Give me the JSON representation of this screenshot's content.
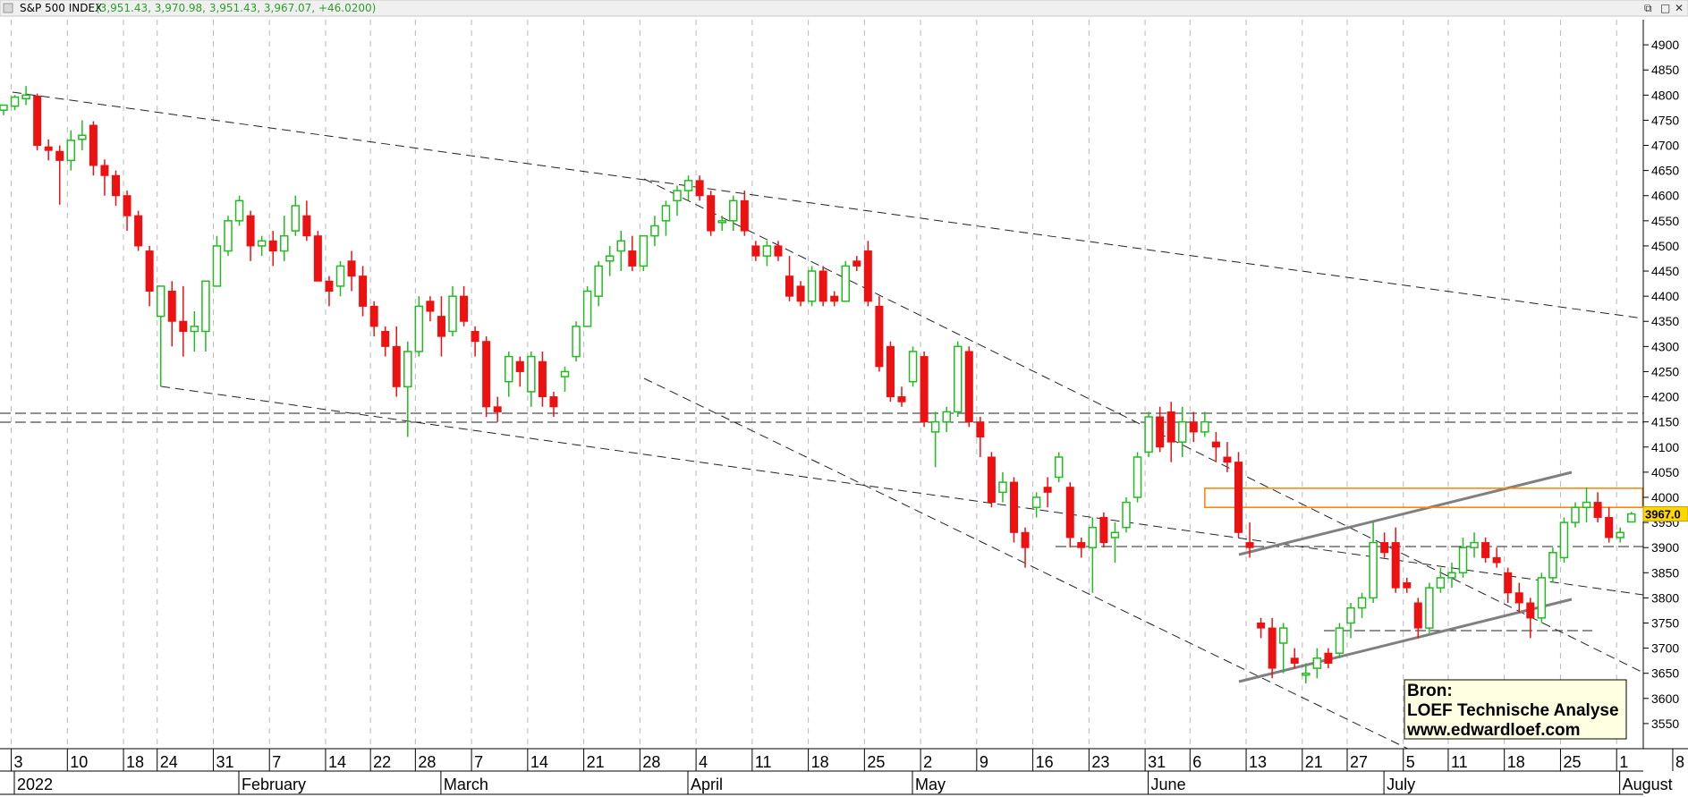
{
  "header": {
    "title": "S&P 500 INDEX",
    "ohlc": "(3,951.43, 3,970.98, 3,951.43, 3,967.07, +46.0200)"
  },
  "colors": {
    "up": "#22bb22",
    "down": "#ee1111",
    "zone": "#ff7f00",
    "last_label_bg": "#ffd700",
    "anno_bg": "#ffffe1"
  },
  "annotation": {
    "line1": "Bron:",
    "line2": "LOEF Technische Analyse",
    "line3": "www.edwardloef.com"
  },
  "chart_data": {
    "type": "candlestick",
    "title": "S&P 500 INDEX",
    "ylim": [
      3500,
      4950
    ],
    "yticks": [
      3550,
      3600,
      3650,
      3700,
      3750,
      3800,
      3850,
      3900,
      3950,
      4000,
      4050,
      4100,
      4150,
      4200,
      4250,
      4300,
      4350,
      4400,
      4450,
      4500,
      4550,
      4600,
      4650,
      4700,
      4750,
      4800,
      4850,
      4900
    ],
    "last_value_label": "3967.0",
    "x_day_labels": [
      {
        "i": 1,
        "t": "3"
      },
      {
        "i": 6,
        "t": "10"
      },
      {
        "i": 11,
        "t": "18"
      },
      {
        "i": 14,
        "t": "24"
      },
      {
        "i": 19,
        "t": "31"
      },
      {
        "i": 24,
        "t": "7"
      },
      {
        "i": 29,
        "t": "14"
      },
      {
        "i": 33,
        "t": "22"
      },
      {
        "i": 37,
        "t": "28"
      },
      {
        "i": 42,
        "t": "7"
      },
      {
        "i": 47,
        "t": "14"
      },
      {
        "i": 52,
        "t": "21"
      },
      {
        "i": 57,
        "t": "28"
      },
      {
        "i": 62,
        "t": "4"
      },
      {
        "i": 67,
        "t": "11"
      },
      {
        "i": 72,
        "t": "18"
      },
      {
        "i": 77,
        "t": "25"
      },
      {
        "i": 82,
        "t": "2"
      },
      {
        "i": 87,
        "t": "9"
      },
      {
        "i": 92,
        "t": "16"
      },
      {
        "i": 97,
        "t": "23"
      },
      {
        "i": 102,
        "t": "31"
      },
      {
        "i": 106,
        "t": "6"
      },
      {
        "i": 111,
        "t": "13"
      },
      {
        "i": 116,
        "t": "21"
      },
      {
        "i": 120,
        "t": "27"
      },
      {
        "i": 125,
        "t": "5"
      },
      {
        "i": 129,
        "t": "11"
      },
      {
        "i": 134,
        "t": "18"
      },
      {
        "i": 139,
        "t": "25"
      },
      {
        "i": 144,
        "t": "1"
      },
      {
        "i": 149,
        "t": "8"
      }
    ],
    "x_month_labels": [
      {
        "i": 0,
        "t": "2022"
      },
      {
        "i": 20,
        "t": "February"
      },
      {
        "i": 38,
        "t": "March"
      },
      {
        "i": 60,
        "t": "April"
      },
      {
        "i": 80,
        "t": "May"
      },
      {
        "i": 101,
        "t": "June"
      },
      {
        "i": 122,
        "t": "July"
      },
      {
        "i": 143,
        "t": "August"
      }
    ],
    "resistance_zone": {
      "i_start": 107,
      "i_end": 146,
      "y_low": 3980,
      "y_high": 4018
    },
    "candles": [
      [
        4770,
        4780,
        4760,
        4780
      ],
      [
        4778,
        4800,
        4770,
        4796
      ],
      [
        4793,
        4818,
        4780,
        4800
      ],
      [
        4798,
        4803,
        4690,
        4700
      ],
      [
        4697,
        4712,
        4670,
        4690
      ],
      [
        4688,
        4700,
        4582,
        4670
      ],
      [
        4670,
        4730,
        4650,
        4710
      ],
      [
        4712,
        4750,
        4690,
        4720
      ],
      [
        4740,
        4748,
        4640,
        4660
      ],
      [
        4660,
        4672,
        4600,
        4640
      ],
      [
        4640,
        4650,
        4580,
        4600
      ],
      [
        4600,
        4610,
        4530,
        4560
      ],
      [
        4560,
        4570,
        4490,
        4500
      ],
      [
        4490,
        4500,
        4380,
        4410
      ],
      [
        4360,
        4420,
        4220,
        4420
      ],
      [
        4410,
        4430,
        4300,
        4350
      ],
      [
        4350,
        4420,
        4280,
        4330
      ],
      [
        4330,
        4370,
        4290,
        4340
      ],
      [
        4330,
        4430,
        4290,
        4430
      ],
      [
        4420,
        4520,
        4420,
        4500
      ],
      [
        4490,
        4560,
        4480,
        4550
      ],
      [
        4550,
        4600,
        4540,
        4590
      ],
      [
        4560,
        4570,
        4470,
        4500
      ],
      [
        4500,
        4520,
        4480,
        4510
      ],
      [
        4510,
        4530,
        4460,
        4490
      ],
      [
        4490,
        4560,
        4470,
        4520
      ],
      [
        4530,
        4600,
        4520,
        4580
      ],
      [
        4560,
        4590,
        4510,
        4520
      ],
      [
        4520,
        4530,
        4430,
        4430
      ],
      [
        4430,
        4440,
        4380,
        4410
      ],
      [
        4420,
        4470,
        4400,
        4460
      ],
      [
        4470,
        4490,
        4410,
        4440
      ],
      [
        4440,
        4460,
        4360,
        4380
      ],
      [
        4380,
        4390,
        4320,
        4340
      ],
      [
        4330,
        4340,
        4280,
        4300
      ],
      [
        4300,
        4340,
        4200,
        4220
      ],
      [
        4220,
        4310,
        4120,
        4290
      ],
      [
        4290,
        4400,
        4280,
        4380
      ],
      [
        4390,
        4400,
        4350,
        4370
      ],
      [
        4360,
        4400,
        4280,
        4320
      ],
      [
        4330,
        4420,
        4320,
        4400
      ],
      [
        4400,
        4420,
        4340,
        4350
      ],
      [
        4330,
        4340,
        4280,
        4310
      ],
      [
        4310,
        4320,
        4160,
        4180
      ],
      [
        4180,
        4200,
        4150,
        4170
      ],
      [
        4230,
        4290,
        4200,
        4280
      ],
      [
        4270,
        4280,
        4220,
        4250
      ],
      [
        4210,
        4290,
        4180,
        4280
      ],
      [
        4270,
        4290,
        4180,
        4200
      ],
      [
        4200,
        4210,
        4160,
        4180
      ],
      [
        4240,
        4260,
        4210,
        4250
      ],
      [
        4280,
        4350,
        4270,
        4340
      ],
      [
        4340,
        4420,
        4340,
        4410
      ],
      [
        4400,
        4470,
        4380,
        4460
      ],
      [
        4470,
        4500,
        4440,
        4480
      ],
      [
        4490,
        4530,
        4450,
        4510
      ],
      [
        4490,
        4520,
        4450,
        4460
      ],
      [
        4460,
        4520,
        4450,
        4520
      ],
      [
        4520,
        4560,
        4500,
        4540
      ],
      [
        4550,
        4590,
        4520,
        4580
      ],
      [
        4590,
        4620,
        4560,
        4610
      ],
      [
        4610,
        4640,
        4590,
        4630
      ],
      [
        4630,
        4640,
        4590,
        4600
      ],
      [
        4600,
        4610,
        4520,
        4530
      ],
      [
        4550,
        4560,
        4530,
        4550
      ],
      [
        4550,
        4600,
        4530,
        4590
      ],
      [
        4590,
        4610,
        4520,
        4530
      ],
      [
        4500,
        4510,
        4470,
        4480
      ],
      [
        4480,
        4510,
        4460,
        4500
      ],
      [
        4500,
        4510,
        4470,
        4480
      ],
      [
        4440,
        4480,
        4390,
        4400
      ],
      [
        4420,
        4430,
        4380,
        4390
      ],
      [
        4390,
        4460,
        4380,
        4450
      ],
      [
        4450,
        4460,
        4380,
        4390
      ],
      [
        4400,
        4410,
        4380,
        4390
      ],
      [
        4390,
        4470,
        4390,
        4460
      ],
      [
        4470,
        4480,
        4450,
        4460
      ],
      [
        4490,
        4510,
        4380,
        4390
      ],
      [
        4380,
        4400,
        4250,
        4260
      ],
      [
        4300,
        4310,
        4190,
        4200
      ],
      [
        4200,
        4220,
        4180,
        4190
      ],
      [
        4230,
        4300,
        4220,
        4290
      ],
      [
        4280,
        4290,
        4140,
        4150
      ],
      [
        4130,
        4170,
        4060,
        4150
      ],
      [
        4150,
        4180,
        4130,
        4170
      ],
      [
        4170,
        4310,
        4160,
        4300
      ],
      [
        4290,
        4300,
        4140,
        4150
      ],
      [
        4150,
        4160,
        4080,
        4120
      ],
      [
        4080,
        4090,
        3980,
        3990
      ],
      [
        4010,
        4050,
        3990,
        4030
      ],
      [
        4030,
        4040,
        3910,
        3930
      ],
      [
        3930,
        3940,
        3860,
        3900
      ],
      [
        3980,
        4010,
        3960,
        4000
      ],
      [
        4020,
        4040,
        3980,
        4010
      ],
      [
        4040,
        4090,
        4030,
        4080
      ],
      [
        4020,
        4030,
        3900,
        3920
      ],
      [
        3910,
        3920,
        3880,
        3900
      ],
      [
        3900,
        3960,
        3810,
        3940
      ],
      [
        3960,
        3970,
        3900,
        3910
      ],
      [
        3920,
        3950,
        3870,
        3930
      ],
      [
        3940,
        4000,
        3930,
        3990
      ],
      [
        4000,
        4090,
        3990,
        4080
      ],
      [
        4090,
        4170,
        4080,
        4160
      ],
      [
        4160,
        4180,
        4090,
        4100
      ],
      [
        4170,
        4190,
        4070,
        4110
      ],
      [
        4110,
        4180,
        4080,
        4150
      ],
      [
        4150,
        4170,
        4110,
        4130
      ],
      [
        4130,
        4170,
        4120,
        4150
      ],
      [
        4110,
        4130,
        4070,
        4100
      ],
      [
        4080,
        4110,
        4050,
        4070
      ],
      [
        4070,
        4090,
        3920,
        3930
      ],
      [
        3910,
        3950,
        3880,
        3900
      ],
      [
        3750,
        3760,
        3720,
        3740
      ],
      [
        3740,
        3760,
        3640,
        3660
      ],
      [
        3710,
        3750,
        3650,
        3740
      ],
      [
        3680,
        3700,
        3660,
        3670
      ],
      [
        3650,
        3670,
        3630,
        3650
      ],
      [
        3660,
        3700,
        3640,
        3680
      ],
      [
        3690,
        3700,
        3660,
        3670
      ],
      [
        3690,
        3750,
        3680,
        3740
      ],
      [
        3750,
        3790,
        3720,
        3780
      ],
      [
        3780,
        3810,
        3760,
        3800
      ],
      [
        3800,
        3950,
        3790,
        3910
      ],
      [
        3910,
        3930,
        3880,
        3890
      ],
      [
        3910,
        3940,
        3810,
        3820
      ],
      [
        3830,
        3840,
        3810,
        3820
      ],
      [
        3790,
        3800,
        3720,
        3740
      ],
      [
        3740,
        3830,
        3730,
        3820
      ],
      [
        3820,
        3860,
        3810,
        3840
      ],
      [
        3840,
        3870,
        3820,
        3850
      ],
      [
        3850,
        3920,
        3840,
        3900
      ],
      [
        3900,
        3930,
        3880,
        3910
      ],
      [
        3910,
        3920,
        3870,
        3880
      ],
      [
        3880,
        3900,
        3860,
        3870
      ],
      [
        3850,
        3860,
        3790,
        3810
      ],
      [
        3810,
        3830,
        3770,
        3790
      ],
      [
        3790,
        3800,
        3720,
        3760
      ],
      [
        3760,
        3850,
        3750,
        3840
      ],
      [
        3840,
        3900,
        3830,
        3890
      ],
      [
        3880,
        3960,
        3870,
        3950
      ],
      [
        3950,
        3990,
        3940,
        3980
      ],
      [
        3980,
        4020,
        3950,
        3990
      ],
      [
        3990,
        4010,
        3950,
        3960
      ],
      [
        3960,
        3980,
        3910,
        3920
      ],
      [
        3920,
        3940,
        3910,
        3930
      ],
      [
        3951,
        3971,
        3951,
        3967
      ]
    ]
  }
}
